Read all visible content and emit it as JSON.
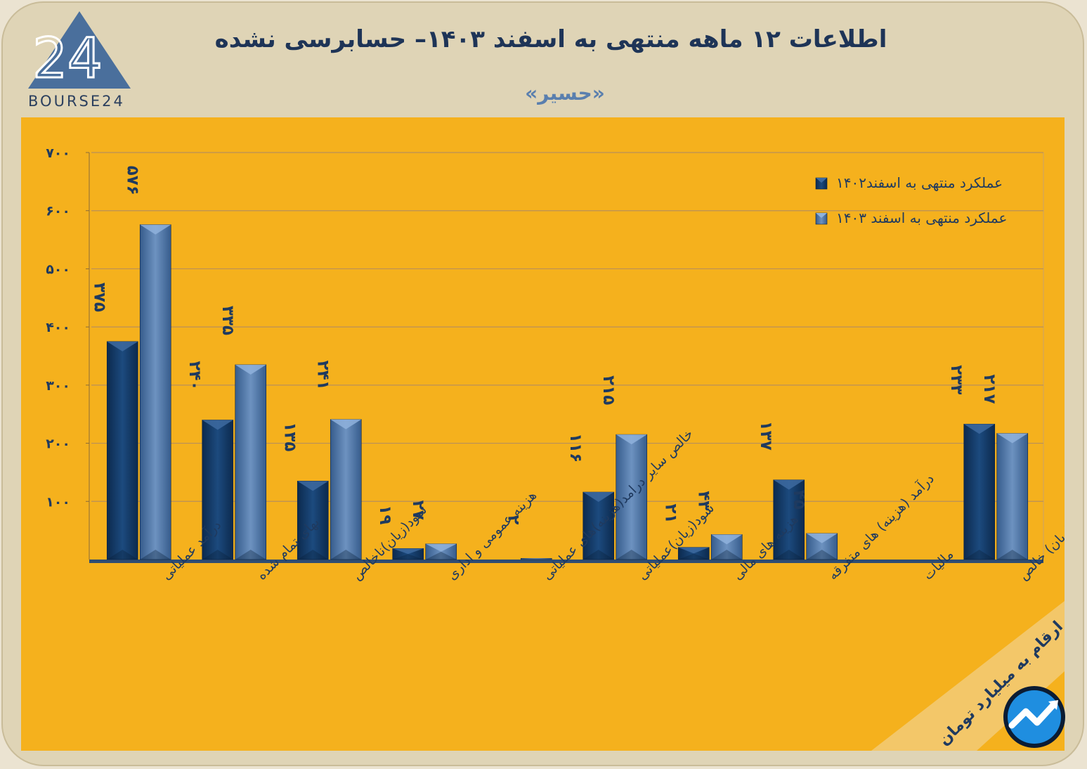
{
  "header": {
    "title": "اطلاعات ۱۲ ماهه منتهی به اسفند  ۱۴۰۳– حسابرسی نشده",
    "subtitle": "«حسیر»",
    "brand_text": "BOURSE24",
    "brand_mark": "24"
  },
  "footer": {
    "units": "ارقام به میلیارد تومان"
  },
  "colors": {
    "panel": "#f5b11d",
    "series_dark": "#123a66",
    "series_light": "#4f77a6",
    "text": "#1f3a5f",
    "grid": "#b9905a"
  },
  "chart_data": {
    "type": "bar",
    "title": "اطلاعات ۱۲ ماهه منتهی به اسفند  ۱۴۰۳– حسابرسی نشده",
    "ylim": [
      0,
      700
    ],
    "yticks": [
      100,
      200,
      300,
      400,
      500,
      600,
      700
    ],
    "ytick_labels": [
      "۱۰۰",
      "۲۰۰",
      "۳۰۰",
      "۴۰۰",
      "۵۰۰",
      "۶۰۰",
      "۷۰۰"
    ],
    "grid": true,
    "legend_position": "top-right",
    "categories": [
      "درآمد عملیاتی",
      "بهای تمام شده",
      "سود(زیان)ناخالص",
      "هزینه عمومی و اداری",
      "خالص سایر درامد(هزینه)های عملیاتی",
      "سود(زیان)عملیاتی",
      "هزینه های مالی",
      "درآمد (هزینه) های متفرقه",
      "مالیات",
      "سود(زیان) خالص"
    ],
    "series": [
      {
        "name": "عملکرد منتهی به اسفند۱۴۰۲",
        "values": [
          375,
          240,
          135,
          19,
          0,
          116,
          21,
          137,
          0,
          233
        ],
        "labels": [
          "۳۷۵",
          "۲۴۰",
          "۱۳۵",
          "۱۹",
          "",
          "۱۱۶",
          "۲۱",
          "۱۳۷",
          "",
          "۲۳۳"
        ]
      },
      {
        "name": "عملکرد منتهی به اسفند ۱۴۰۳",
        "values": [
          576,
          335,
          241,
          27,
          2,
          215,
          43,
          45,
          0,
          217
        ],
        "labels": [
          "۵۷۶",
          "۳۳۵",
          "۲۴۱",
          "۲۷",
          "۲",
          "۲۱۵",
          "۴۳",
          "۴۵",
          "",
          "۲۱۷"
        ]
      }
    ]
  }
}
